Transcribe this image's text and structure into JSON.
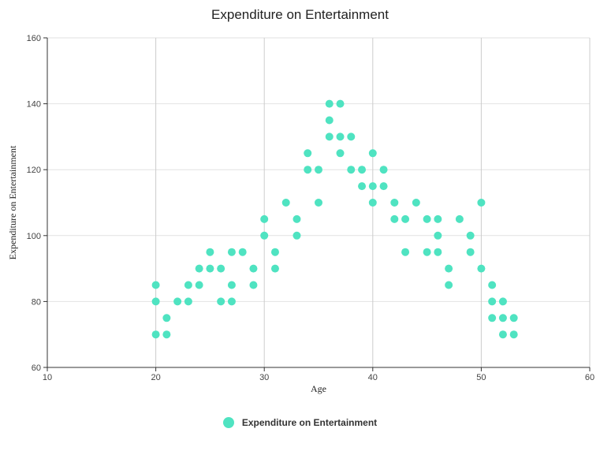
{
  "chart_data": {
    "type": "scatter",
    "title": "Expenditure on Entertainment",
    "xlabel": "Age",
    "ylabel": "Expenditure on Entertainment",
    "xlim": [
      10,
      60
    ],
    "ylim": [
      60,
      160
    ],
    "x_ticks": [
      10,
      20,
      30,
      40,
      50,
      60
    ],
    "y_ticks": [
      60,
      80,
      100,
      120,
      140,
      160
    ],
    "grid": {
      "vertical": true,
      "horizontal": true
    },
    "legend_position": "bottom-center",
    "series": [
      {
        "name": "Expenditure on Entertainment",
        "color": "#4fe3c1",
        "points": [
          [
            20,
            85
          ],
          [
            20,
            80
          ],
          [
            20,
            70
          ],
          [
            21,
            75
          ],
          [
            21,
            70
          ],
          [
            22,
            80
          ],
          [
            23,
            85
          ],
          [
            23,
            80
          ],
          [
            24,
            90
          ],
          [
            24,
            85
          ],
          [
            25,
            95
          ],
          [
            25,
            90
          ],
          [
            26,
            90
          ],
          [
            26,
            80
          ],
          [
            27,
            95
          ],
          [
            27,
            85
          ],
          [
            27,
            80
          ],
          [
            28,
            95
          ],
          [
            29,
            90
          ],
          [
            29,
            85
          ],
          [
            30,
            105
          ],
          [
            30,
            100
          ],
          [
            31,
            95
          ],
          [
            31,
            90
          ],
          [
            32,
            110
          ],
          [
            33,
            105
          ],
          [
            33,
            100
          ],
          [
            34,
            125
          ],
          [
            34,
            120
          ],
          [
            35,
            120
          ],
          [
            35,
            110
          ],
          [
            36,
            140
          ],
          [
            36,
            135
          ],
          [
            36,
            130
          ],
          [
            37,
            140
          ],
          [
            37,
            130
          ],
          [
            37,
            125
          ],
          [
            38,
            130
          ],
          [
            38,
            120
          ],
          [
            39,
            120
          ],
          [
            39,
            115
          ],
          [
            40,
            125
          ],
          [
            40,
            115
          ],
          [
            40,
            110
          ],
          [
            41,
            120
          ],
          [
            41,
            115
          ],
          [
            42,
            110
          ],
          [
            42,
            105
          ],
          [
            43,
            105
          ],
          [
            43,
            95
          ],
          [
            44,
            110
          ],
          [
            45,
            105
          ],
          [
            45,
            95
          ],
          [
            46,
            105
          ],
          [
            46,
            100
          ],
          [
            46,
            95
          ],
          [
            47,
            90
          ],
          [
            47,
            85
          ],
          [
            48,
            105
          ],
          [
            49,
            100
          ],
          [
            49,
            95
          ],
          [
            50,
            110
          ],
          [
            50,
            90
          ],
          [
            51,
            85
          ],
          [
            51,
            80
          ],
          [
            51,
            75
          ],
          [
            52,
            80
          ],
          [
            52,
            75
          ],
          [
            52,
            70
          ],
          [
            53,
            75
          ],
          [
            53,
            70
          ]
        ]
      }
    ]
  }
}
